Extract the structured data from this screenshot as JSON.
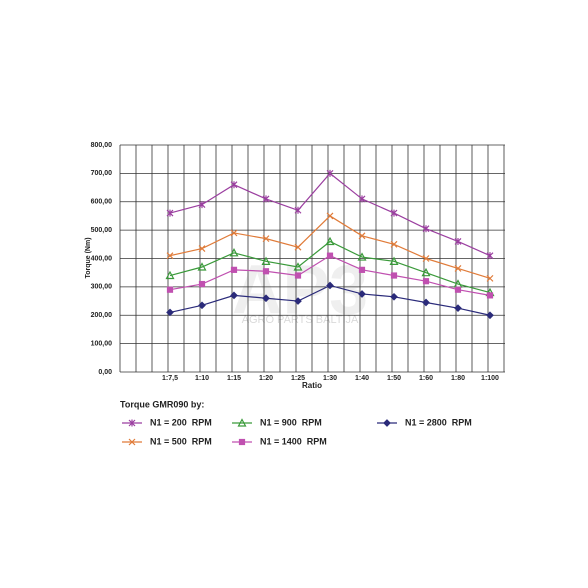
{
  "chart_data": {
    "type": "line",
    "watermark": {
      "logo": "AP3",
      "text": "AGRO PARTS BALTIJA"
    },
    "y_label": "Torque (Nm)",
    "x_label": "Ratio",
    "legend_title": "Torque GMR090 by:",
    "categories": [
      "1:7,5",
      "1:10",
      "1:15",
      "1:20",
      "1:25",
      "1:30",
      "1:40",
      "1:50",
      "1:60",
      "1:80",
      "1:100"
    ],
    "ylim": [
      0,
      800
    ],
    "yticks": [
      {
        "value": 0,
        "label": "0,00"
      },
      {
        "value": 100,
        "label": "100,00"
      },
      {
        "value": 200,
        "label": "200,00"
      },
      {
        "value": 300,
        "label": "300,00"
      },
      {
        "value": 400,
        "label": "400,00"
      },
      {
        "value": 500,
        "label": "500,00"
      },
      {
        "value": 600,
        "label": "600,00"
      },
      {
        "value": 700,
        "label": "700,00"
      },
      {
        "value": 800,
        "label": "800,00"
      }
    ],
    "grid": true,
    "series": [
      {
        "name": "N1 = 200  RPM",
        "color": "#9b3fa0",
        "marker": "asterisk",
        "values": [
          560,
          590,
          660,
          610,
          570,
          700,
          610,
          560,
          505,
          460,
          410
        ]
      },
      {
        "name": "N1 = 500  RPM",
        "color": "#e07b39",
        "marker": "x",
        "values": [
          410,
          435,
          490,
          470,
          440,
          550,
          480,
          450,
          400,
          365,
          330
        ]
      },
      {
        "name": "N1 = 900  RPM",
        "color": "#3a9a3a",
        "marker": "triangle",
        "values": [
          340,
          370,
          420,
          390,
          370,
          460,
          405,
          390,
          350,
          310,
          280
        ]
      },
      {
        "name": "N1 = 1400  RPM",
        "color": "#c050b0",
        "marker": "square",
        "values": [
          290,
          310,
          360,
          355,
          340,
          410,
          360,
          340,
          320,
          290,
          270
        ]
      },
      {
        "name": "N1 = 2800  RPM",
        "color": "#2b2b7a",
        "marker": "diamond",
        "values": [
          210,
          235,
          270,
          260,
          250,
          305,
          275,
          265,
          245,
          225,
          200
        ]
      }
    ]
  }
}
